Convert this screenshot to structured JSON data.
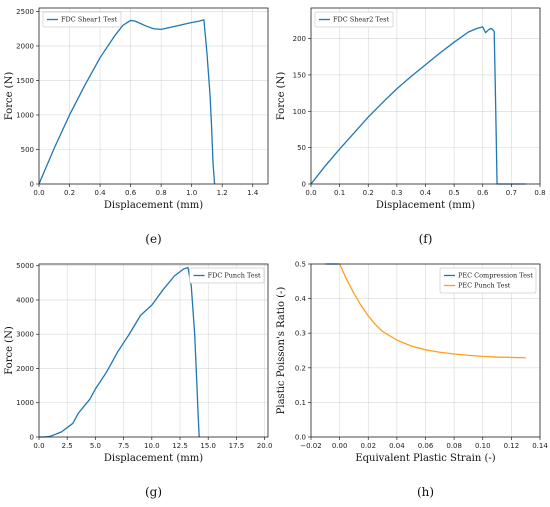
{
  "chart_data": [
    {
      "id": "e",
      "type": "line",
      "caption": "(e)",
      "xlabel": "Displacement (mm)",
      "ylabel": "Force (N)",
      "xlim": [
        0,
        1.5
      ],
      "ylim": [
        0,
        2550
      ],
      "xticks": [
        0.0,
        0.2,
        0.4,
        0.6,
        0.8,
        1.0,
        1.2,
        1.4
      ],
      "xticklabels": [
        "0.0",
        "0.2",
        "0.4",
        "0.6",
        "0.8",
        "1.0",
        "1.2",
        "1.4"
      ],
      "yticks": [
        0,
        500,
        1000,
        1500,
        2000,
        2500
      ],
      "yticklabels": [
        "0",
        "500",
        "1000",
        "1500",
        "2000",
        "2500"
      ],
      "grid": true,
      "legend_position": "top-left",
      "series": [
        {
          "name": "FDC Shear1 Test",
          "color": "#1f77b4",
          "x": [
            0.0,
            0.05,
            0.1,
            0.2,
            0.3,
            0.4,
            0.5,
            0.55,
            0.6,
            0.63,
            0.7,
            0.75,
            0.8,
            0.9,
            1.0,
            1.05,
            1.08,
            1.1,
            1.12,
            1.13,
            1.14,
            1.15
          ],
          "y": [
            0,
            260,
            520,
            1000,
            1430,
            1830,
            2160,
            2300,
            2370,
            2360,
            2290,
            2250,
            2240,
            2290,
            2340,
            2360,
            2380,
            1900,
            1300,
            850,
            300,
            0
          ]
        }
      ]
    },
    {
      "id": "f",
      "type": "line",
      "caption": "(f)",
      "xlabel": "Displacement (mm)",
      "ylabel": "Force  (N)",
      "xlim": [
        0,
        0.8
      ],
      "ylim": [
        0,
        242
      ],
      "xticks": [
        0.0,
        0.1,
        0.2,
        0.3,
        0.4,
        0.5,
        0.6,
        0.7,
        0.8
      ],
      "xticklabels": [
        "0.0",
        "0.1",
        "0.2",
        "0.3",
        "0.4",
        "0.5",
        "0.6",
        "0.7",
        "0.8"
      ],
      "yticks": [
        0,
        50,
        100,
        150,
        200
      ],
      "yticklabels": [
        "0",
        "50",
        "100",
        "150",
        "200"
      ],
      "grid": true,
      "legend_position": "top-left",
      "series": [
        {
          "name": "FDC Shear2 Test",
          "color": "#1f77b4",
          "x": [
            0.0,
            0.05,
            0.1,
            0.15,
            0.2,
            0.25,
            0.3,
            0.35,
            0.4,
            0.45,
            0.5,
            0.55,
            0.58,
            0.6,
            0.61,
            0.62,
            0.63,
            0.64,
            0.645,
            0.65,
            0.7,
            0.75
          ],
          "y": [
            0,
            25,
            48,
            70,
            92,
            112,
            131,
            148,
            164,
            180,
            195,
            209,
            214,
            216,
            208,
            212,
            214,
            210,
            110,
            0,
            0,
            0
          ]
        }
      ]
    },
    {
      "id": "g",
      "type": "line",
      "caption": "(g)",
      "xlabel": "Displacement (mm)",
      "ylabel": "Force (N)",
      "xlim": [
        0,
        20.3
      ],
      "ylim": [
        0,
        5050
      ],
      "xticks": [
        0.0,
        2.5,
        5.0,
        7.5,
        10.0,
        12.5,
        15.0,
        17.5,
        20.0
      ],
      "xticklabels": [
        "0.0",
        "2.5",
        "5.0",
        "7.5",
        "10.0",
        "12.5",
        "15.0",
        "17.5",
        "20.0"
      ],
      "yticks": [
        0,
        1000,
        2000,
        3000,
        4000,
        5000
      ],
      "yticklabels": [
        "0",
        "1000",
        "2000",
        "3000",
        "4000",
        "5000"
      ],
      "grid": true,
      "legend_position": "top-right",
      "series": [
        {
          "name": "FDC Punch Test",
          "color": "#1f77b4",
          "x": [
            0.0,
            0.5,
            1.0,
            2.0,
            3.0,
            3.5,
            4.0,
            4.5,
            5.0,
            6.0,
            7.0,
            8.0,
            9.0,
            10.0,
            11.0,
            12.0,
            12.8,
            13.2,
            13.5,
            13.8,
            14.0,
            14.1,
            14.2
          ],
          "y": [
            0,
            0,
            20,
            150,
            400,
            700,
            900,
            1100,
            1400,
            1900,
            2500,
            3000,
            3550,
            3850,
            4300,
            4700,
            4900,
            4950,
            4400,
            3000,
            1500,
            700,
            0
          ]
        }
      ]
    },
    {
      "id": "h",
      "type": "line",
      "caption": "(h)",
      "xlabel": "Equivalent Plastic Strain (-)",
      "ylabel": "Plastic Poisson's Ratio (-)",
      "xlim": [
        -0.02,
        0.14
      ],
      "ylim": [
        0,
        0.5
      ],
      "xticks": [
        -0.02,
        0.0,
        0.02,
        0.04,
        0.06,
        0.08,
        0.1,
        0.12,
        0.14
      ],
      "xticklabels": [
        "−0.02",
        "0.00",
        "0.02",
        "0.04",
        "0.06",
        "0.08",
        "0.10",
        "0.12",
        "0.14"
      ],
      "yticks": [
        0.0,
        0.1,
        0.2,
        0.3,
        0.4,
        0.5
      ],
      "yticklabels": [
        "0.0",
        "0.1",
        "0.2",
        "0.3",
        "0.4",
        "0.5"
      ],
      "grid": true,
      "legend_position": "top-right",
      "series": [
        {
          "name": "PEC Compression Test",
          "color": "#1f77b4",
          "x": [
            -0.01,
            0.0
          ],
          "y": [
            0.5,
            0.5
          ]
        },
        {
          "name": "PEC Punch Test",
          "color": "#ff9f1c",
          "x": [
            0.0,
            0.005,
            0.01,
            0.015,
            0.02,
            0.025,
            0.03,
            0.04,
            0.05,
            0.06,
            0.07,
            0.08,
            0.09,
            0.1,
            0.11,
            0.12,
            0.13
          ],
          "y": [
            0.5,
            0.455,
            0.415,
            0.38,
            0.35,
            0.325,
            0.305,
            0.28,
            0.263,
            0.252,
            0.245,
            0.24,
            0.236,
            0.233,
            0.231,
            0.23,
            0.229
          ]
        }
      ]
    }
  ]
}
